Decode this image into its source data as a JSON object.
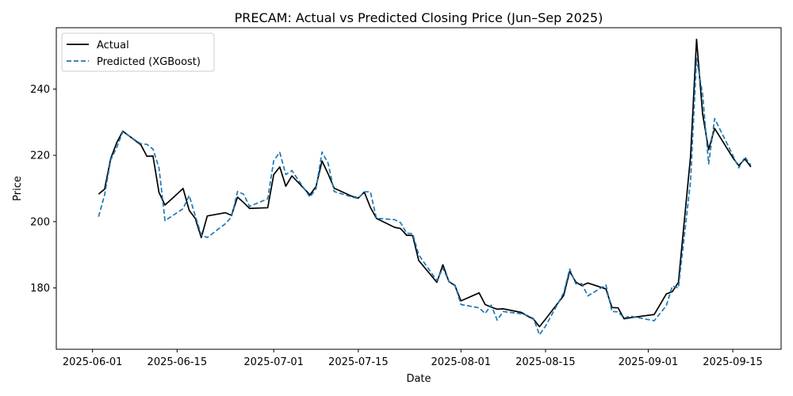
{
  "chart_data": {
    "type": "line",
    "title": "PRECAM: Actual vs Predicted Closing Price (Jun–Sep 2025)",
    "xlabel": "Date",
    "ylabel": "Price",
    "xlim": [
      "2025-05-26",
      "2025-09-23"
    ],
    "ylim": [
      161.5,
      258.5
    ],
    "xticks": [
      "2025-06-01",
      "2025-06-15",
      "2025-07-01",
      "2025-07-15",
      "2025-08-01",
      "2025-08-15",
      "2025-09-01",
      "2025-09-15"
    ],
    "yticks": [
      180,
      200,
      220,
      240
    ],
    "legend_position": "top-left",
    "grid": false,
    "series": [
      {
        "name": "Actual",
        "color": "#000000",
        "style": "solid",
        "points": [
          [
            "2025-06-02",
            208.3
          ],
          [
            "2025-06-03",
            209.8
          ],
          [
            "2025-06-04",
            219.0
          ],
          [
            "2025-06-05",
            223.8
          ],
          [
            "2025-06-06",
            227.3
          ],
          [
            "2025-06-09",
            223.2
          ],
          [
            "2025-06-10",
            219.7
          ],
          [
            "2025-06-11",
            219.8
          ],
          [
            "2025-06-12",
            208.8
          ],
          [
            "2025-06-13",
            205.0
          ],
          [
            "2025-06-16",
            210.0
          ],
          [
            "2025-06-17",
            203.4
          ],
          [
            "2025-06-18",
            201.0
          ],
          [
            "2025-06-19",
            195.2
          ],
          [
            "2025-06-20",
            201.7
          ],
          [
            "2025-06-23",
            202.7
          ],
          [
            "2025-06-24",
            201.9
          ],
          [
            "2025-06-25",
            207.4
          ],
          [
            "2025-06-26",
            205.8
          ],
          [
            "2025-06-27",
            204.0
          ],
          [
            "2025-06-30",
            204.2
          ],
          [
            "2025-07-01",
            214.2
          ],
          [
            "2025-07-02",
            216.5
          ],
          [
            "2025-07-03",
            210.7
          ],
          [
            "2025-07-04",
            213.8
          ],
          [
            "2025-07-07",
            208.1
          ],
          [
            "2025-07-08",
            210.6
          ],
          [
            "2025-07-09",
            218.3
          ],
          [
            "2025-07-10",
            214.4
          ],
          [
            "2025-07-11",
            210.1
          ],
          [
            "2025-07-14",
            207.6
          ],
          [
            "2025-07-15",
            207.1
          ],
          [
            "2025-07-16",
            208.9
          ],
          [
            "2025-07-17",
            204.3
          ],
          [
            "2025-07-18",
            201.0
          ],
          [
            "2025-07-21",
            198.3
          ],
          [
            "2025-07-22",
            197.9
          ],
          [
            "2025-07-23",
            195.9
          ],
          [
            "2025-07-24",
            195.8
          ],
          [
            "2025-07-25",
            188.3
          ],
          [
            "2025-07-28",
            181.7
          ],
          [
            "2025-07-29",
            187.0
          ],
          [
            "2025-07-30",
            181.9
          ],
          [
            "2025-07-31",
            180.7
          ],
          [
            "2025-08-01",
            176.1
          ],
          [
            "2025-08-04",
            178.5
          ],
          [
            "2025-08-05",
            175.0
          ],
          [
            "2025-08-06",
            174.2
          ],
          [
            "2025-08-07",
            173.6
          ],
          [
            "2025-08-08",
            173.7
          ],
          [
            "2025-08-11",
            172.6
          ],
          [
            "2025-08-12",
            171.5
          ],
          [
            "2025-08-13",
            170.6
          ],
          [
            "2025-08-14",
            168.3
          ],
          [
            "2025-08-15",
            170.6
          ],
          [
            "2025-08-18",
            177.7
          ],
          [
            "2025-08-19",
            185.0
          ],
          [
            "2025-08-20",
            181.8
          ],
          [
            "2025-08-21",
            180.7
          ],
          [
            "2025-08-22",
            181.5
          ],
          [
            "2025-08-25",
            179.7
          ],
          [
            "2025-08-26",
            174.1
          ],
          [
            "2025-08-27",
            174.0
          ],
          [
            "2025-08-28",
            170.7
          ],
          [
            "2025-08-29",
            171.0
          ],
          [
            "2025-09-02",
            172.0
          ],
          [
            "2025-09-03",
            175.1
          ],
          [
            "2025-09-04",
            178.2
          ],
          [
            "2025-09-05",
            178.9
          ],
          [
            "2025-09-06",
            181.7
          ],
          [
            "2025-09-08",
            219.7
          ],
          [
            "2025-09-09",
            255.0
          ],
          [
            "2025-09-10",
            232.5
          ],
          [
            "2025-09-11",
            221.7
          ],
          [
            "2025-09-12",
            228.1
          ],
          [
            "2025-09-15",
            219.3
          ],
          [
            "2025-09-16",
            216.9
          ],
          [
            "2025-09-17",
            218.9
          ],
          [
            "2025-09-18",
            216.5
          ]
        ]
      },
      {
        "name": "Predicted (XGBoost)",
        "color": "#1f77b4",
        "style": "dashed",
        "points": [
          [
            "2025-06-02",
            201.5
          ],
          [
            "2025-06-03",
            208.1
          ],
          [
            "2025-06-04",
            218.6
          ],
          [
            "2025-06-05",
            222.4
          ],
          [
            "2025-06-06",
            227.1
          ],
          [
            "2025-06-09",
            223.5
          ],
          [
            "2025-06-10",
            223.3
          ],
          [
            "2025-06-11",
            221.9
          ],
          [
            "2025-06-12",
            216.2
          ],
          [
            "2025-06-13",
            200.3
          ],
          [
            "2025-06-16",
            203.9
          ],
          [
            "2025-06-17",
            207.9
          ],
          [
            "2025-06-18",
            201.8
          ],
          [
            "2025-06-19",
            196.0
          ],
          [
            "2025-06-20",
            195.2
          ],
          [
            "2025-06-23",
            199.4
          ],
          [
            "2025-06-24",
            201.4
          ],
          [
            "2025-06-25",
            209.1
          ],
          [
            "2025-06-26",
            208.3
          ],
          [
            "2025-06-27",
            204.6
          ],
          [
            "2025-06-30",
            206.9
          ],
          [
            "2025-07-01",
            218.4
          ],
          [
            "2025-07-02",
            220.9
          ],
          [
            "2025-07-03",
            214.2
          ],
          [
            "2025-07-04",
            215.4
          ],
          [
            "2025-07-07",
            207.4
          ],
          [
            "2025-07-08",
            210.0
          ],
          [
            "2025-07-09",
            221.0
          ],
          [
            "2025-07-10",
            217.6
          ],
          [
            "2025-07-11",
            209.1
          ],
          [
            "2025-07-14",
            207.4
          ],
          [
            "2025-07-15",
            207.0
          ],
          [
            "2025-07-16",
            209.0
          ],
          [
            "2025-07-17",
            209.0
          ],
          [
            "2025-07-18",
            201.0
          ],
          [
            "2025-07-21",
            200.6
          ],
          [
            "2025-07-22",
            199.7
          ],
          [
            "2025-07-23",
            196.5
          ],
          [
            "2025-07-24",
            196.4
          ],
          [
            "2025-07-25",
            190.0
          ],
          [
            "2025-07-28",
            182.2
          ],
          [
            "2025-07-29",
            186.0
          ],
          [
            "2025-07-30",
            182.0
          ],
          [
            "2025-07-31",
            180.9
          ],
          [
            "2025-08-01",
            175.0
          ],
          [
            "2025-08-04",
            174.0
          ],
          [
            "2025-08-05",
            172.3
          ],
          [
            "2025-08-06",
            174.8
          ],
          [
            "2025-08-07",
            170.3
          ],
          [
            "2025-08-08",
            172.9
          ],
          [
            "2025-08-11",
            172.2
          ],
          [
            "2025-08-12",
            171.7
          ],
          [
            "2025-08-13",
            170.8
          ],
          [
            "2025-08-14",
            165.9
          ],
          [
            "2025-08-15",
            168.5
          ],
          [
            "2025-08-18",
            178.5
          ],
          [
            "2025-08-19",
            185.7
          ],
          [
            "2025-08-20",
            181.3
          ],
          [
            "2025-08-21",
            181.3
          ],
          [
            "2025-08-22",
            177.6
          ],
          [
            "2025-08-25",
            180.9
          ],
          [
            "2025-08-26",
            172.9
          ],
          [
            "2025-08-27",
            172.8
          ],
          [
            "2025-08-28",
            170.9
          ],
          [
            "2025-08-29",
            171.5
          ],
          [
            "2025-09-02",
            170.1
          ],
          [
            "2025-09-03",
            172.4
          ],
          [
            "2025-09-04",
            174.7
          ],
          [
            "2025-09-05",
            180.6
          ],
          [
            "2025-09-06",
            180.0
          ],
          [
            "2025-09-08",
            212.2
          ],
          [
            "2025-09-09",
            249.3
          ],
          [
            "2025-09-10",
            238.4
          ],
          [
            "2025-09-11",
            217.4
          ],
          [
            "2025-09-12",
            231.1
          ],
          [
            "2025-09-15",
            220.0
          ],
          [
            "2025-09-16",
            216.2
          ],
          [
            "2025-09-17",
            219.5
          ],
          [
            "2025-09-18",
            217.0
          ]
        ]
      }
    ]
  }
}
